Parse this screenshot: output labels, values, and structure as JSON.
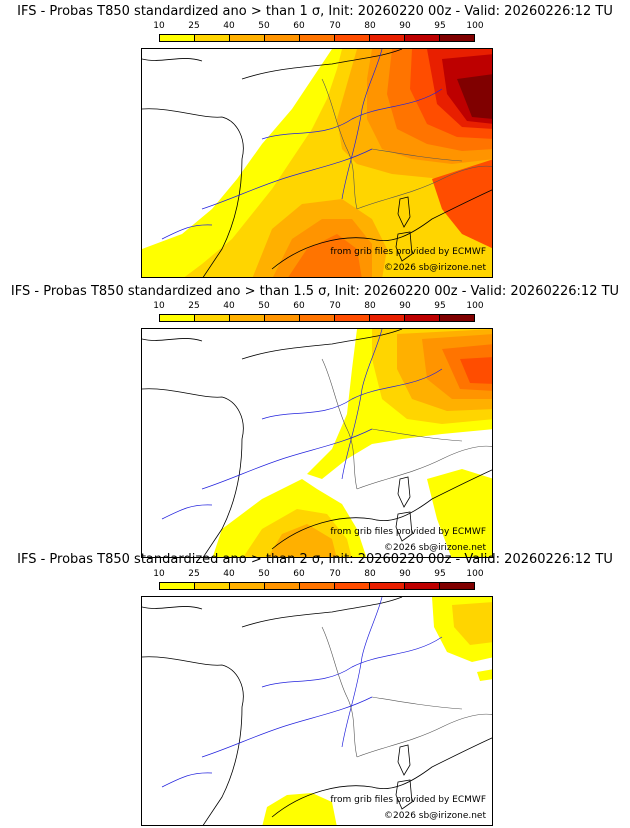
{
  "colorbar": {
    "labels": [
      "10",
      "25",
      "40",
      "50",
      "60",
      "70",
      "80",
      "90",
      "95",
      "100"
    ],
    "colors": [
      "#ffff00",
      "#ffd500",
      "#ffb000",
      "#ff9400",
      "#ff7400",
      "#ff4d00",
      "#e81f00",
      "#bd0000",
      "#800000"
    ]
  },
  "panels": [
    {
      "title": "IFS - Probas T850  standardized ano > than 1 σ, Init: 20260220 00z - Valid: 20260226:12 TU",
      "credit_line1": "from grib files provided by ECMWF",
      "credit_line2": "©2026 sb@irizone.net"
    },
    {
      "title": "IFS - Probas T850  standardized ano > than 1.5 σ, Init: 20260220 00z - Valid: 20260226:12 TU",
      "credit_line1": "from grib files provided by ECMWF",
      "credit_line2": "©2026 sb@irizone.net"
    },
    {
      "title": "IFS - Probas T850  standardized ano > than 2 σ, Init: 20260220 00z - Valid: 20260226:12 TU",
      "credit_line1": "from grib files provided by ECMWF",
      "credit_line2": "©2026 sb@irizone.net"
    }
  ]
}
